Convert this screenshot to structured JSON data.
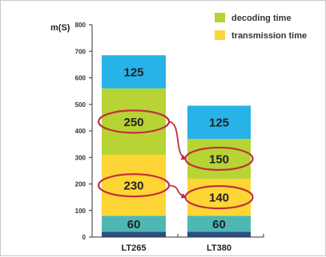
{
  "chart_data": {
    "type": "bar",
    "stacked": true,
    "categories": [
      "LT265",
      "LT380"
    ],
    "ylabel": "m(S)",
    "ylim": [
      0,
      800
    ],
    "yticks": [
      0,
      100,
      200,
      300,
      400,
      500,
      600,
      700,
      800
    ],
    "legend_position": "top-right",
    "legend": [
      {
        "name": "decoding time",
        "color": "#b7d334"
      },
      {
        "name": "transmission time",
        "color": "#fdd535"
      }
    ],
    "segments": [
      {
        "key": "base",
        "color": "#2c4d86",
        "values": [
          20,
          20
        ],
        "labels": [
          "",
          ""
        ]
      },
      {
        "key": "teal",
        "color": "#4db8b3",
        "values": [
          60,
          60
        ],
        "labels": [
          "60",
          "60"
        ]
      },
      {
        "key": "transmission",
        "color": "#fdd535",
        "values": [
          230,
          140
        ],
        "labels": [
          "230",
          "140"
        ]
      },
      {
        "key": "decoding",
        "color": "#b7d334",
        "values": [
          250,
          150
        ],
        "labels": [
          "250",
          "150"
        ]
      },
      {
        "key": "top",
        "color": "#27b2e8",
        "values": [
          125,
          125
        ],
        "labels": [
          "125",
          "125"
        ]
      }
    ],
    "highlight_color": "#c0303a"
  }
}
